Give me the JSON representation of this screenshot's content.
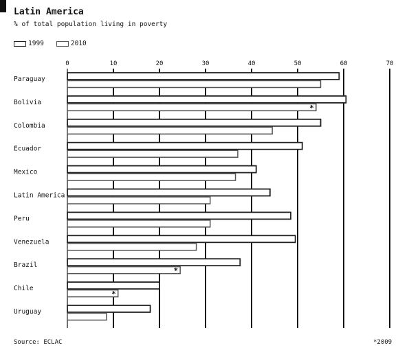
{
  "chart_data": {
    "type": "bar",
    "title": "Latin America",
    "subtitle": "% of total population living in poverty",
    "categories": [
      "Paraguay",
      "Bolivia",
      "Colombia",
      "Ecuador",
      "Mexico",
      "Latin America",
      "Peru",
      "Venezuela",
      "Brazil",
      "Chile",
      "Uruguay"
    ],
    "series": [
      {
        "name": "1999",
        "values": [
          59,
          60.5,
          55,
          51,
          41,
          44,
          48.5,
          49.5,
          37.5,
          20,
          18
        ]
      },
      {
        "name": "2010",
        "values": [
          55,
          54,
          44.5,
          37,
          36.5,
          31,
          31,
          28,
          24.5,
          11,
          8.5
        ]
      }
    ],
    "xlim": [
      0,
      70
    ],
    "xticks": [
      "0",
      "10",
      "20",
      "30",
      "40",
      "50",
      "60",
      "70"
    ],
    "markers": [
      {
        "category": "Bolivia",
        "series": "2010",
        "label": "*"
      },
      {
        "category": "Brazil",
        "series": "2010",
        "label": "*"
      },
      {
        "category": "Chile",
        "series": "2010",
        "label": "*"
      }
    ],
    "grid": true,
    "legend_position": "top-left",
    "source": "Source: ECLAC",
    "footnote": "*2009",
    "colors": {
      "series_1999": "#222222",
      "series_2010": "#555555",
      "grid": "#111111"
    }
  }
}
